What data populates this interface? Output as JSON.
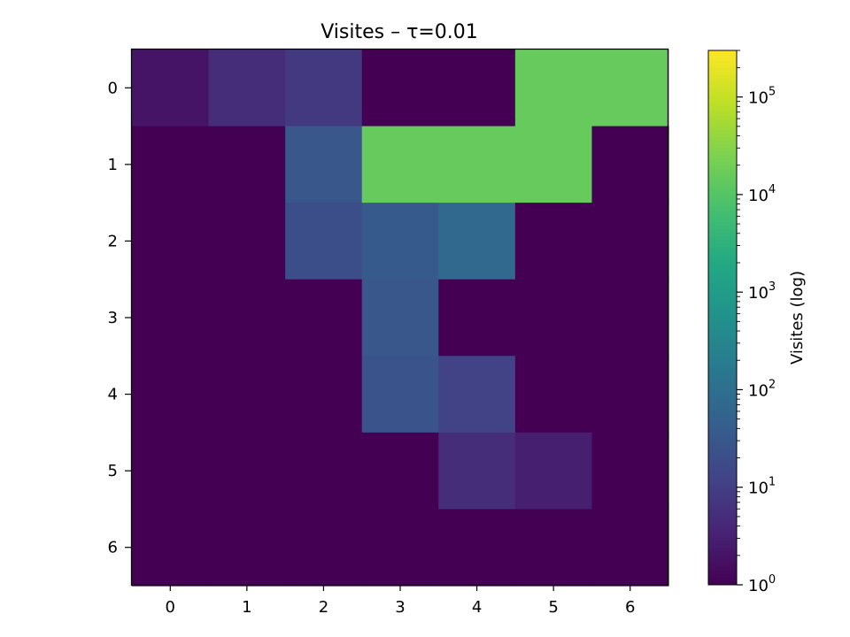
{
  "chart_data": {
    "type": "heatmap",
    "title": "Visites – τ=0.01",
    "x_ticks": [
      "0",
      "1",
      "2",
      "3",
      "4",
      "5",
      "6"
    ],
    "y_ticks": [
      "0",
      "1",
      "2",
      "3",
      "4",
      "5",
      "6"
    ],
    "xlabel": "",
    "ylabel": "",
    "colorbar": {
      "label": "Visites (log)",
      "scale": "log",
      "colormap": "viridis",
      "vmin": 1,
      "vmax": 300000,
      "tick_values": [
        1,
        10,
        100,
        1000,
        10000,
        100000
      ],
      "tick_labels": [
        "10",
        "10",
        "10",
        "10",
        "10",
        "10"
      ],
      "tick_exponents": [
        "0",
        "1",
        "2",
        "3",
        "4",
        "5"
      ]
    },
    "values": [
      [
        2,
        5,
        8,
        1,
        1,
        15000,
        15000
      ],
      [
        1,
        1,
        30,
        15000,
        15000,
        15000,
        1
      ],
      [
        1,
        1,
        20,
        35,
        70,
        1,
        1
      ],
      [
        1,
        1,
        1,
        30,
        1,
        1,
        1
      ],
      [
        1,
        1,
        1,
        25,
        12,
        1,
        1
      ],
      [
        1,
        1,
        1,
        1,
        5,
        3,
        1
      ],
      [
        1,
        1,
        1,
        1,
        1,
        1,
        1
      ]
    ]
  }
}
